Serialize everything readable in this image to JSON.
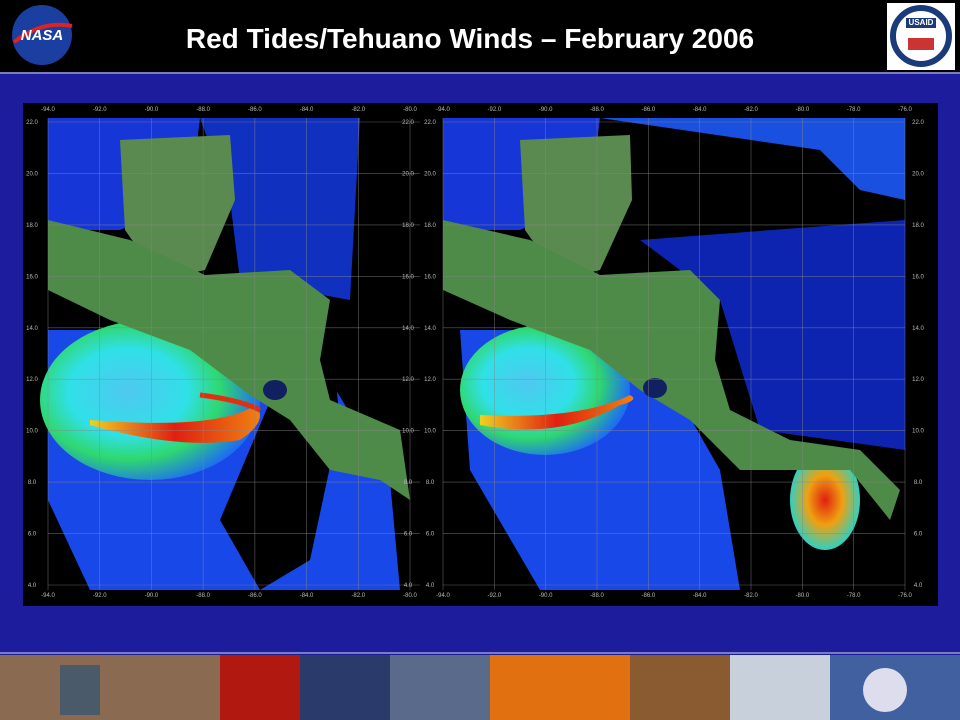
{
  "header": {
    "title": "Red Tides/Tehuano Winds – February 2006",
    "left_logo": "NASA",
    "right_logo": "USAID"
  },
  "panels": [
    {
      "lon_labels": [
        "-94.0",
        "-92.0",
        "-90.0",
        "-88.0",
        "-86.0",
        "-84.0",
        "-82.0",
        "-80.0"
      ],
      "lat_labels": [
        "22.0",
        "20.0",
        "18.0",
        "16.0",
        "14.0",
        "12.0",
        "10.0",
        "8.0",
        "6.0",
        "4.0"
      ]
    },
    {
      "lon_labels": [
        "-94.0",
        "-92.0",
        "-90.0",
        "-88.0",
        "-86.0",
        "-84.0",
        "-82.0",
        "-80.0",
        "-78.0",
        "-76.0"
      ],
      "lat_labels": [
        "22.0",
        "20.0",
        "18.0",
        "16.0",
        "14.0",
        "12.0",
        "10.0",
        "8.0",
        "6.0",
        "4.0"
      ]
    }
  ]
}
